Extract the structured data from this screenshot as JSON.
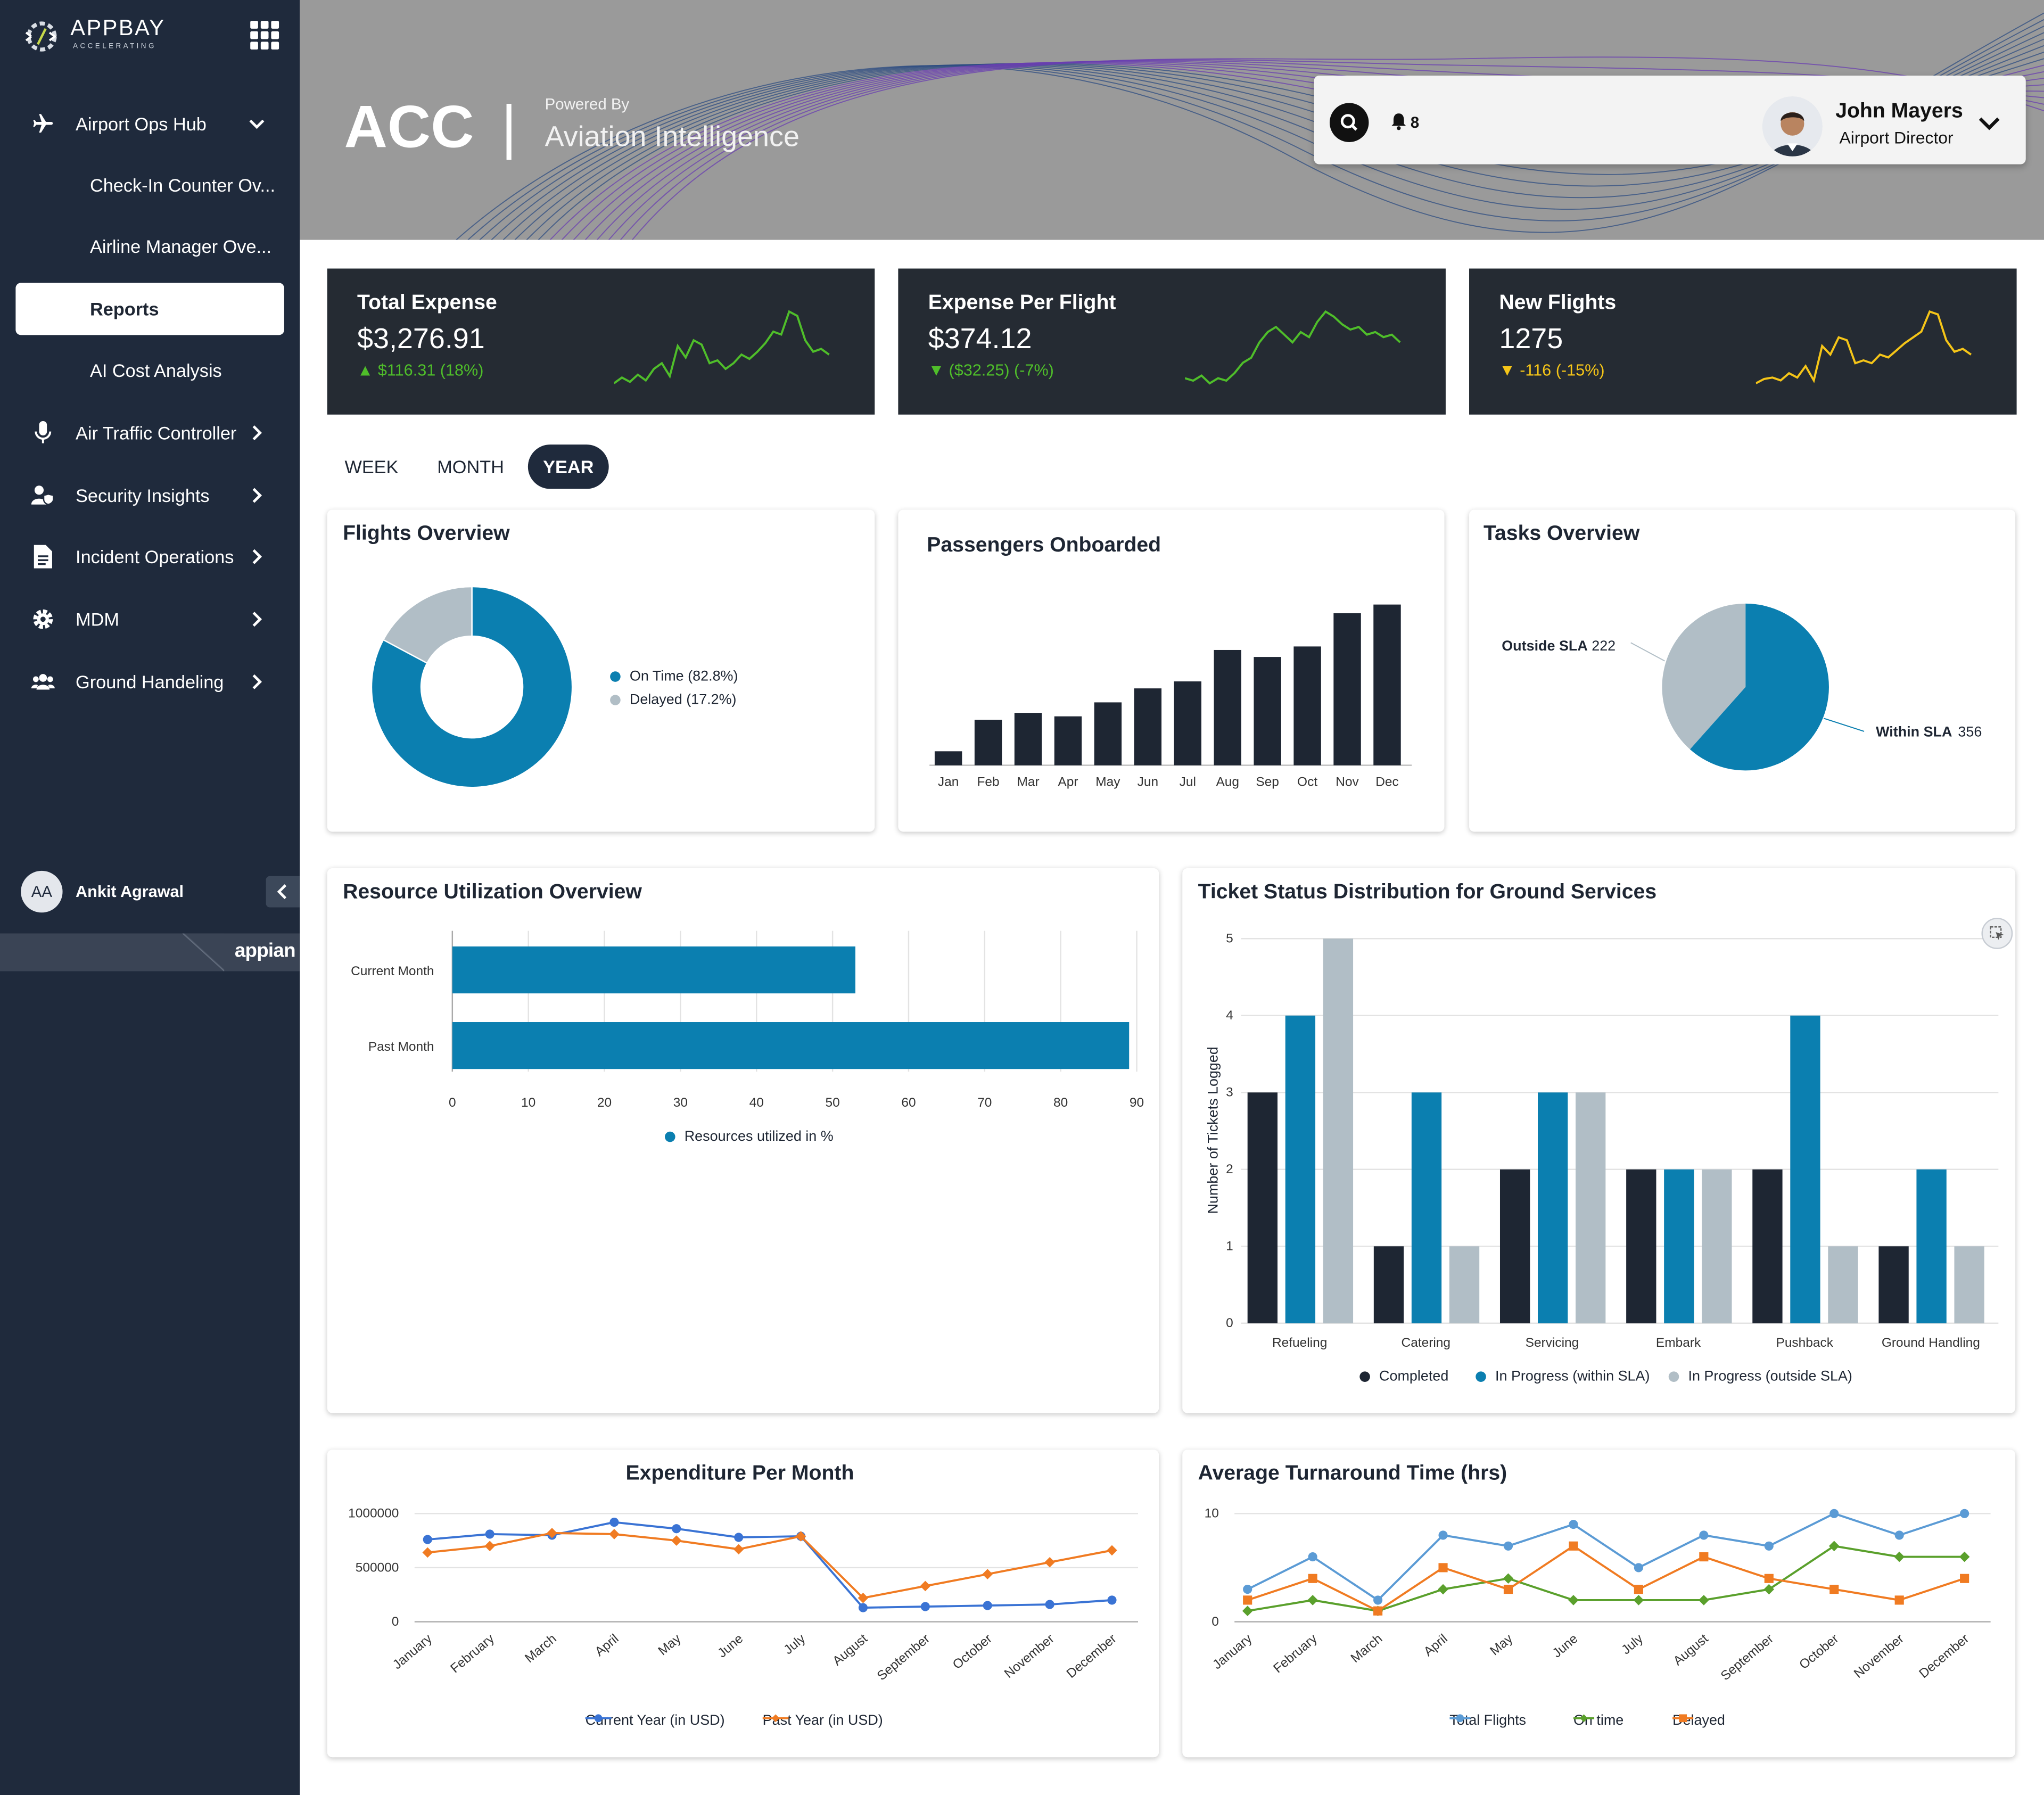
{
  "brand": {
    "name": "APPBAY",
    "tagline": "ACCELERATING"
  },
  "sidebar": {
    "items": [
      {
        "label": "Airport Ops Hub",
        "icon": "plane-icon",
        "expanded": true
      },
      {
        "label": "Air Traffic Controller",
        "icon": "microphone-icon"
      },
      {
        "label": "Security Insights",
        "icon": "user-shield-icon"
      },
      {
        "label": "Incident Operations",
        "icon": "document-icon"
      },
      {
        "label": "MDM",
        "icon": "gear-icon"
      },
      {
        "label": "Ground Handeling",
        "icon": "users-icon"
      }
    ],
    "subitems": [
      "Check-In Counter Ov...",
      "Airline Manager Ove...",
      "Reports",
      "AI Cost Analysis"
    ],
    "active": "Reports",
    "user": {
      "initials": "AA",
      "name": "Ankit Agrawal"
    },
    "footer_logo": "appian"
  },
  "header": {
    "title": "ACC",
    "divider": "|",
    "powered_by": "Powered By",
    "product": "Aviation Intelligence",
    "notifications": "8",
    "user_name": "John Mayers",
    "user_role": "Airport Director"
  },
  "colors": {
    "sidebar": "#1f2a3c",
    "primary": "#0b7fb0",
    "grey": "#b1bec6",
    "dark": "#1e2633",
    "green": "#4fbe2a",
    "amber": "#f5c518"
  },
  "kpis": [
    {
      "title": "Total Expense",
      "value": "$3,276.91",
      "delta": "$116.31 (18%)",
      "direction": "up",
      "color": "#4fbe2a",
      "spark": [
        8,
        12,
        9,
        14,
        10,
        18,
        22,
        13,
        34,
        26,
        38,
        35,
        22,
        24,
        18,
        22,
        28,
        25,
        30,
        36,
        44,
        42,
        58,
        55,
        38,
        30,
        32,
        28
      ]
    },
    {
      "title": "Expense Per Flight",
      "value": "$374.12",
      "delta": "($32.25) (-7%)",
      "direction": "down",
      "color": "#4fbe2a",
      "spark": [
        10,
        9,
        11,
        8,
        10,
        9,
        12,
        16,
        18,
        24,
        28,
        30,
        27,
        24,
        28,
        26,
        32,
        36,
        34,
        31,
        29,
        30,
        27,
        28,
        26,
        27,
        24
      ]
    },
    {
      "title": "New Flights",
      "value": "1275",
      "delta": "-116 (-15%)",
      "direction": "down",
      "color": "#f5c518",
      "spark": [
        8,
        11,
        12,
        10,
        15,
        12,
        20,
        10,
        34,
        28,
        40,
        38,
        22,
        24,
        22,
        28,
        26,
        31,
        36,
        40,
        44,
        58,
        56,
        38,
        30,
        32,
        28
      ]
    }
  ],
  "time_tabs": {
    "items": [
      "WEEK",
      "MONTH",
      "YEAR"
    ],
    "active": "YEAR"
  },
  "cards": {
    "flights": "Flights Overview",
    "passengers": "Passengers Onboarded",
    "tasks": "Tasks Overview",
    "resource": "Resource Utilization Overview",
    "tickets": "Ticket Status Distribution for Ground Services",
    "expenditure": "Expenditure Per Month",
    "turnaround": "Average Turnaround Time (hrs)"
  },
  "chart_data": [
    {
      "type": "pie",
      "title": "Flights Overview",
      "variant": "donut",
      "slices": [
        {
          "label": "On Time (82.8%)",
          "value": 82.8,
          "color": "#0b7fb0"
        },
        {
          "label": "Delayed (17.2%)",
          "value": 17.2,
          "color": "#b1bec6"
        }
      ],
      "legend": "right"
    },
    {
      "type": "bar",
      "title": "Passengers Onboarded",
      "categories": [
        "Jan",
        "Feb",
        "Mar",
        "Apr",
        "May",
        "Jun",
        "Jul",
        "Aug",
        "Sep",
        "Oct",
        "Nov",
        "Dec"
      ],
      "values": [
        8,
        26,
        30,
        28,
        36,
        44,
        48,
        66,
        62,
        68,
        87,
        92
      ],
      "ylim": [
        0,
        100
      ],
      "color": "#1e2633",
      "grid": false
    },
    {
      "type": "pie",
      "title": "Tasks Overview",
      "slices": [
        {
          "label": "Within SLA",
          "value": 356,
          "color": "#0b7fb0"
        },
        {
          "label": "Outside SLA",
          "value": 222,
          "color": "#b1bec6"
        }
      ]
    },
    {
      "type": "bar",
      "orientation": "horizontal",
      "title": "Resource Utilization Overview",
      "categories": [
        "Current Month",
        "Past Month"
      ],
      "values": [
        53,
        89
      ],
      "xlim": [
        0,
        90
      ],
      "xticks": [
        0,
        10,
        20,
        30,
        40,
        50,
        60,
        70,
        80,
        90
      ],
      "series": [
        {
          "name": "Resources utilized in %",
          "color": "#0b7fb0"
        }
      ],
      "legend": "bottom",
      "grid": true
    },
    {
      "type": "bar",
      "title": "Ticket Status Distribution for Ground Services",
      "categories": [
        "Refueling",
        "Catering",
        "Servicing",
        "Embark",
        "Pushback",
        "Ground Handling"
      ],
      "ylabel": "Number of Tickets Logged",
      "ylim": [
        0,
        5
      ],
      "yticks": [
        0,
        1,
        2,
        3,
        4,
        5
      ],
      "series": [
        {
          "name": "Completed",
          "values": [
            3,
            1,
            2,
            2,
            2,
            1
          ],
          "color": "#1e2633"
        },
        {
          "name": "In Progress (within SLA)",
          "values": [
            4,
            3,
            3,
            2,
            4,
            2
          ],
          "color": "#0b7fb0"
        },
        {
          "name": "In Progress (outside SLA)",
          "values": [
            5,
            1,
            3,
            2,
            1,
            1
          ],
          "color": "#b1bec6"
        }
      ],
      "legend": "bottom",
      "grid": true
    },
    {
      "type": "line",
      "title": "Expenditure Per Month",
      "categories": [
        "January",
        "February",
        "March",
        "April",
        "May",
        "June",
        "July",
        "August",
        "September",
        "October",
        "November",
        "December"
      ],
      "ylim": [
        0,
        1000000
      ],
      "yticks": [
        0,
        500000,
        1000000
      ],
      "ytick_labels": [
        "0",
        "500000",
        "1000000"
      ],
      "series": [
        {
          "name": "Current Year (in USD)",
          "values": [
            760000,
            810000,
            800000,
            920000,
            860000,
            780000,
            790000,
            130000,
            140000,
            150000,
            160000,
            200000
          ],
          "color": "#3a73d4"
        },
        {
          "name": "Past Year (in USD)",
          "values": [
            640000,
            700000,
            820000,
            810000,
            750000,
            670000,
            790000,
            220000,
            330000,
            440000,
            550000,
            660000
          ],
          "color": "#f07b22"
        }
      ],
      "legend": "bottom",
      "grid": true
    },
    {
      "type": "line",
      "title": "Average Turnaround Time (hrs)",
      "categories": [
        "January",
        "February",
        "March",
        "April",
        "May",
        "June",
        "July",
        "August",
        "September",
        "October",
        "November",
        "December"
      ],
      "ylim": [
        0,
        10
      ],
      "yticks": [
        0,
        10
      ],
      "series": [
        {
          "name": "Total Flights",
          "values": [
            3,
            6,
            2,
            8,
            7,
            9,
            5,
            8,
            7,
            10,
            8,
            10
          ],
          "color": "#5b9bd5",
          "marker": "circle"
        },
        {
          "name": "On time",
          "values": [
            1,
            2,
            1,
            3,
            4,
            2,
            2,
            2,
            3,
            7,
            6,
            6
          ],
          "color": "#5aa02c",
          "marker": "diamond"
        },
        {
          "name": "Delayed",
          "values": [
            2,
            4,
            1,
            5,
            3,
            7,
            3,
            6,
            4,
            3,
            2,
            4
          ],
          "color": "#f07b22",
          "marker": "square"
        }
      ],
      "legend": "bottom",
      "grid": true
    }
  ]
}
